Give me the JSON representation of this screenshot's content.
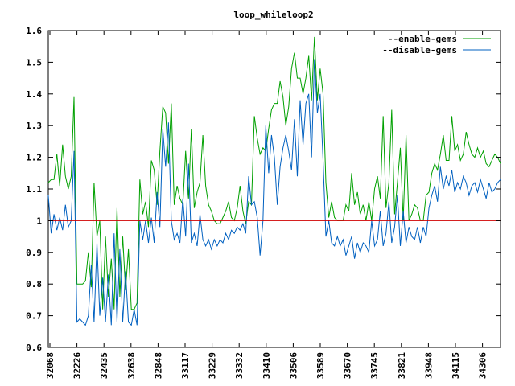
{
  "chart_data": {
    "type": "line",
    "title": "loop_whileloop2",
    "xlabel": "",
    "ylabel": "",
    "ylim": [
      0.6,
      1.6
    ],
    "yticks": [
      "0.6",
      "0.7",
      "0.8",
      "0.9",
      "1",
      "1.1",
      "1.2",
      "1.3",
      "1.4",
      "1.5",
      "1.6"
    ],
    "xticks": [
      "32068",
      "32226",
      "32435",
      "32638",
      "32848",
      "33117",
      "33229",
      "33332",
      "33410",
      "33506",
      "33589",
      "33670",
      "33745",
      "33821",
      "33948",
      "34115",
      "34306"
    ],
    "legend_position": "top-right",
    "grid": false,
    "reference_line": 1.0,
    "colors": {
      "enable": "#00a000",
      "disable": "#0060c0",
      "reference": "#d00000",
      "axis": "#000000"
    },
    "series": [
      {
        "name": "--enable-gems",
        "color": "#00a000",
        "values": [
          1.12,
          1.13,
          1.13,
          1.21,
          1.11,
          1.24,
          1.14,
          1.1,
          1.14,
          1.39,
          0.8,
          0.8,
          0.8,
          0.81,
          0.9,
          0.79,
          1.12,
          0.95,
          1.0,
          0.72,
          0.95,
          0.76,
          0.88,
          0.72,
          1.04,
          0.76,
          0.95,
          0.78,
          0.91,
          0.72,
          0.72,
          0.74,
          1.13,
          1.02,
          1.06,
          0.98,
          1.19,
          1.16,
          1.05,
          1.22,
          1.36,
          1.34,
          1.18,
          1.37,
          1.05,
          1.11,
          1.07,
          1.05,
          1.22,
          1.07,
          1.29,
          1.04,
          1.09,
          1.12,
          1.27,
          1.11,
          1.05,
          1.03,
          1.0,
          0.99,
          0.99,
          1.01,
          1.03,
          1.06,
          1.01,
          1.0,
          1.04,
          1.11,
          1.03,
          0.99,
          1.06,
          1.05,
          1.33,
          1.26,
          1.21,
          1.23,
          1.22,
          1.29,
          1.35,
          1.37,
          1.37,
          1.44,
          1.39,
          1.3,
          1.36,
          1.48,
          1.53,
          1.45,
          1.45,
          1.4,
          1.45,
          1.52,
          1.38,
          1.58,
          1.38,
          1.48,
          1.4,
          1.12,
          1.01,
          1.06,
          1.01,
          1.0,
          1.0,
          1.0,
          1.05,
          1.03,
          1.15,
          1.05,
          1.09,
          1.02,
          1.05,
          1.0,
          1.06,
          1.0,
          1.1,
          1.14,
          1.07,
          1.33,
          1.04,
          1.12,
          1.35,
          1.02,
          1.12,
          1.23,
          1.0,
          1.27,
          1.0,
          1.02,
          1.05,
          1.04,
          1.0,
          1.0,
          1.08,
          1.09,
          1.15,
          1.18,
          1.16,
          1.21,
          1.27,
          1.19,
          1.19,
          1.33,
          1.22,
          1.24,
          1.19,
          1.21,
          1.28,
          1.24,
          1.21,
          1.2,
          1.23,
          1.2,
          1.22,
          1.18,
          1.17,
          1.19,
          1.21,
          1.2,
          1.18
        ]
      },
      {
        "name": "--disable-gems",
        "color": "#0060c0",
        "values": [
          1.08,
          0.96,
          1.02,
          0.97,
          1.01,
          0.97,
          1.05,
          0.98,
          1.0,
          1.22,
          0.68,
          0.69,
          0.68,
          0.67,
          0.7,
          0.86,
          0.68,
          0.93,
          0.7,
          0.82,
          0.68,
          0.83,
          0.67,
          0.96,
          0.68,
          0.91,
          0.68,
          0.84,
          0.68,
          0.67,
          0.72,
          0.67,
          1.0,
          0.94,
          1.0,
          0.93,
          1.01,
          0.93,
          1.09,
          0.98,
          1.29,
          1.17,
          1.31,
          1.0,
          0.94,
          0.96,
          0.93,
          1.07,
          0.95,
          1.18,
          0.93,
          0.96,
          0.92,
          1.02,
          0.94,
          0.92,
          0.94,
          0.91,
          0.94,
          0.92,
          0.94,
          0.93,
          0.96,
          0.94,
          0.97,
          0.96,
          0.98,
          0.97,
          0.99,
          0.96,
          1.14,
          1.05,
          1.06,
          1.01,
          0.89,
          1.0,
          1.3,
          1.15,
          1.27,
          1.2,
          1.05,
          1.17,
          1.23,
          1.27,
          1.22,
          1.16,
          1.32,
          1.14,
          1.38,
          1.24,
          1.37,
          1.4,
          1.2,
          1.51,
          1.34,
          1.4,
          1.19,
          0.95,
          1.0,
          0.93,
          0.92,
          0.95,
          0.92,
          0.94,
          0.89,
          0.92,
          0.95,
          0.88,
          0.93,
          0.9,
          0.93,
          0.92,
          0.9,
          1.0,
          0.92,
          0.94,
          1.03,
          0.92,
          0.96,
          1.06,
          0.93,
          0.98,
          1.08,
          0.92,
          1.03,
          0.93,
          0.98,
          0.95,
          0.94,
          0.98,
          0.93,
          0.98,
          0.95,
          1.04,
          1.08,
          1.11,
          1.06,
          1.17,
          1.1,
          1.14,
          1.11,
          1.16,
          1.09,
          1.12,
          1.1,
          1.14,
          1.12,
          1.08,
          1.11,
          1.12,
          1.09,
          1.13,
          1.1,
          1.07,
          1.12,
          1.09,
          1.1,
          1.12,
          1.13
        ]
      }
    ]
  }
}
